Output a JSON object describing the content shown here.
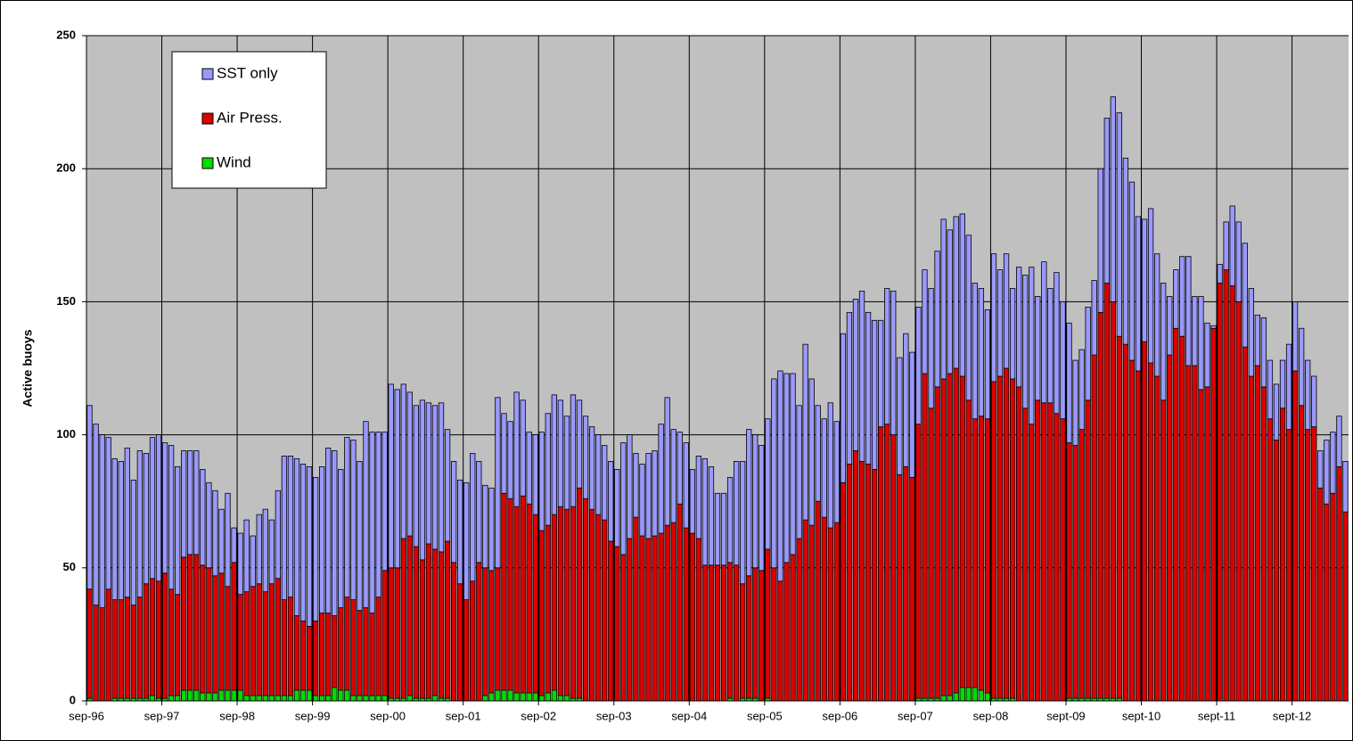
{
  "chart_data": {
    "type": "stacked_bar",
    "y_label": "Active buoys",
    "categories": [
      "sep-96",
      null,
      null,
      null,
      null,
      null,
      null,
      null,
      null,
      null,
      null,
      null,
      "sep-97",
      null,
      null,
      null,
      null,
      null,
      null,
      null,
      null,
      null,
      null,
      null,
      "sep-98",
      null,
      null,
      null,
      null,
      null,
      null,
      null,
      null,
      null,
      null,
      null,
      "sep-99",
      null,
      null,
      null,
      null,
      null,
      null,
      null,
      null,
      null,
      null,
      null,
      "sep-00",
      null,
      null,
      null,
      null,
      null,
      null,
      null,
      null,
      null,
      null,
      null,
      "sep-01",
      null,
      null,
      null,
      null,
      null,
      null,
      null,
      null,
      null,
      null,
      null,
      "sep-02",
      null,
      null,
      null,
      null,
      null,
      null,
      null,
      null,
      null,
      null,
      null,
      "sep-03",
      null,
      null,
      null,
      null,
      null,
      null,
      null,
      null,
      null,
      null,
      null,
      "sep-04",
      null,
      null,
      null,
      null,
      null,
      null,
      null,
      null,
      null,
      null,
      null,
      "sep-05",
      null,
      null,
      null,
      null,
      null,
      null,
      null,
      null,
      null,
      null,
      null,
      "sep-06",
      null,
      null,
      null,
      null,
      null,
      null,
      null,
      null,
      null,
      null,
      null,
      "sep-07",
      null,
      null,
      null,
      null,
      null,
      null,
      null,
      null,
      null,
      null,
      null,
      "sep-08",
      null,
      null,
      null,
      null,
      null,
      null,
      null,
      null,
      null,
      null,
      null,
      "sept-09",
      null,
      null,
      null,
      null,
      null,
      null,
      null,
      null,
      null,
      null,
      null,
      "sept-10",
      null,
      null,
      null,
      null,
      null,
      null,
      null,
      null,
      null,
      null,
      null,
      "sept-11",
      null,
      null,
      null,
      null,
      null,
      null,
      null,
      null,
      null,
      null,
      null,
      "sept-12",
      null,
      null,
      null,
      null,
      null,
      null,
      null,
      null
    ],
    "series": [
      {
        "name": "Wind",
        "color": "#00dd00",
        "values": [
          1,
          0,
          0,
          0,
          1,
          1,
          1,
          1,
          1,
          1,
          2,
          1,
          1,
          2,
          2,
          4,
          4,
          4,
          3,
          3,
          3,
          4,
          4,
          4,
          4,
          2,
          2,
          2,
          2,
          2,
          2,
          2,
          2,
          4,
          4,
          4,
          2,
          2,
          2,
          5,
          4,
          4,
          2,
          2,
          2,
          2,
          2,
          2,
          1,
          1,
          1,
          2,
          1,
          1,
          1,
          2,
          1,
          1,
          0,
          0,
          0,
          0,
          0,
          2,
          3,
          4,
          4,
          4,
          3,
          3,
          3,
          3,
          2,
          3,
          4,
          2,
          2,
          1,
          1,
          0,
          0,
          0,
          0,
          0,
          0,
          0,
          0,
          0,
          0,
          0,
          0,
          0,
          0,
          0,
          0,
          0,
          0,
          0,
          0,
          0,
          0,
          0,
          1,
          0,
          1,
          1,
          1,
          0,
          1,
          0,
          0,
          0,
          0,
          0,
          0,
          0,
          0,
          0,
          0,
          0,
          0,
          0,
          0,
          0,
          0,
          0,
          0,
          0,
          0,
          0,
          0,
          0,
          1,
          1,
          1,
          1,
          2,
          2,
          3,
          5,
          5,
          5,
          4,
          3,
          1,
          1,
          1,
          1,
          0,
          0,
          0,
          0,
          0,
          0,
          0,
          0,
          1,
          1,
          1,
          1,
          1,
          1,
          1,
          1,
          1,
          0,
          0,
          0,
          0,
          0,
          0,
          0,
          0,
          0,
          0,
          0,
          0,
          0,
          0,
          0,
          0,
          0,
          0,
          0,
          0,
          0,
          0,
          0,
          0,
          0,
          0,
          0,
          0,
          0,
          0,
          0,
          0,
          0,
          0,
          0,
          0
        ]
      },
      {
        "name": "Air Press.",
        "color": "#dd0000",
        "values": [
          41,
          36,
          35,
          42,
          37,
          37,
          38,
          35,
          38,
          43,
          44,
          44,
          47,
          40,
          38,
          50,
          51,
          51,
          48,
          47,
          44,
          44,
          39,
          48,
          36,
          39,
          41,
          42,
          39,
          42,
          44,
          36,
          37,
          28,
          26,
          24,
          28,
          31,
          31,
          27,
          31,
          35,
          36,
          32,
          33,
          31,
          37,
          47,
          49,
          49,
          60,
          60,
          57,
          52,
          58,
          55,
          55,
          59,
          52,
          44,
          38,
          45,
          52,
          48,
          46,
          46,
          74,
          72,
          70,
          74,
          71,
          67,
          62,
          63,
          66,
          71,
          70,
          72,
          79,
          76,
          72,
          70,
          68,
          60,
          58,
          55,
          61,
          69,
          62,
          61,
          62,
          63,
          66,
          67,
          74,
          65,
          63,
          61,
          51,
          51,
          51,
          51,
          51,
          51,
          43,
          46,
          49,
          49,
          56,
          50,
          45,
          52,
          55,
          61,
          68,
          66,
          75,
          69,
          65,
          67,
          82,
          89,
          94,
          90,
          89,
          87,
          103,
          104,
          100,
          85,
          88,
          84,
          103,
          122,
          109,
          117,
          119,
          121,
          122,
          117,
          108,
          101,
          103,
          103,
          119,
          121,
          124,
          120,
          118,
          110,
          104,
          113,
          112,
          112,
          108,
          106,
          96,
          95,
          101,
          112,
          129,
          145,
          156,
          149,
          136,
          134,
          128,
          124,
          135,
          127,
          122,
          113,
          130,
          140,
          137,
          126,
          126,
          117,
          118,
          140,
          157,
          162,
          156,
          150,
          133,
          122,
          126,
          118,
          106,
          98,
          110,
          102,
          124,
          111,
          102,
          103,
          80,
          74,
          78,
          88,
          71
        ]
      },
      {
        "name": "SST only",
        "color": "#9999ff",
        "values": [
          69,
          68,
          65,
          57,
          53,
          52,
          56,
          47,
          55,
          49,
          53,
          55,
          49,
          54,
          48,
          40,
          39,
          39,
          36,
          32,
          32,
          24,
          35,
          13,
          23,
          27,
          19,
          26,
          31,
          24,
          33,
          54,
          53,
          59,
          59,
          60,
          54,
          55,
          62,
          62,
          52,
          60,
          60,
          56,
          70,
          68,
          62,
          52,
          69,
          67,
          58,
          54,
          53,
          60,
          53,
          54,
          56,
          42,
          38,
          39,
          44,
          48,
          38,
          31,
          31,
          64,
          30,
          29,
          43,
          36,
          27,
          30,
          37,
          42,
          45,
          40,
          35,
          42,
          33,
          31,
          31,
          30,
          28,
          30,
          29,
          42,
          39,
          24,
          27,
          32,
          32,
          41,
          48,
          35,
          27,
          32,
          24,
          31,
          40,
          37,
          27,
          27,
          32,
          39,
          46,
          55,
          50,
          47,
          49,
          71,
          79,
          71,
          68,
          50,
          66,
          55,
          36,
          37,
          47,
          38,
          56,
          57,
          57,
          64,
          57,
          56,
          40,
          51,
          54,
          44,
          50,
          47,
          44,
          39,
          45,
          51,
          60,
          54,
          57,
          61,
          62,
          51,
          48,
          41,
          48,
          40,
          43,
          34,
          45,
          50,
          59,
          39,
          53,
          43,
          53,
          44,
          45,
          32,
          30,
          35,
          28,
          54,
          62,
          77,
          84,
          70,
          67,
          58,
          46,
          58,
          46,
          44,
          22,
          22,
          30,
          41,
          26,
          35,
          24,
          1,
          7,
          18,
          30,
          30,
          39,
          33,
          19,
          26,
          22,
          21,
          18,
          32,
          26,
          29,
          26,
          19,
          14,
          24,
          23,
          19,
          19
        ]
      }
    ],
    "ylim": [
      0,
      250
    ],
    "yticks": [
      0,
      50,
      100,
      150,
      200,
      250
    ],
    "grid": true,
    "legend": "upper left",
    "plot_background": "#c0c0c0"
  }
}
